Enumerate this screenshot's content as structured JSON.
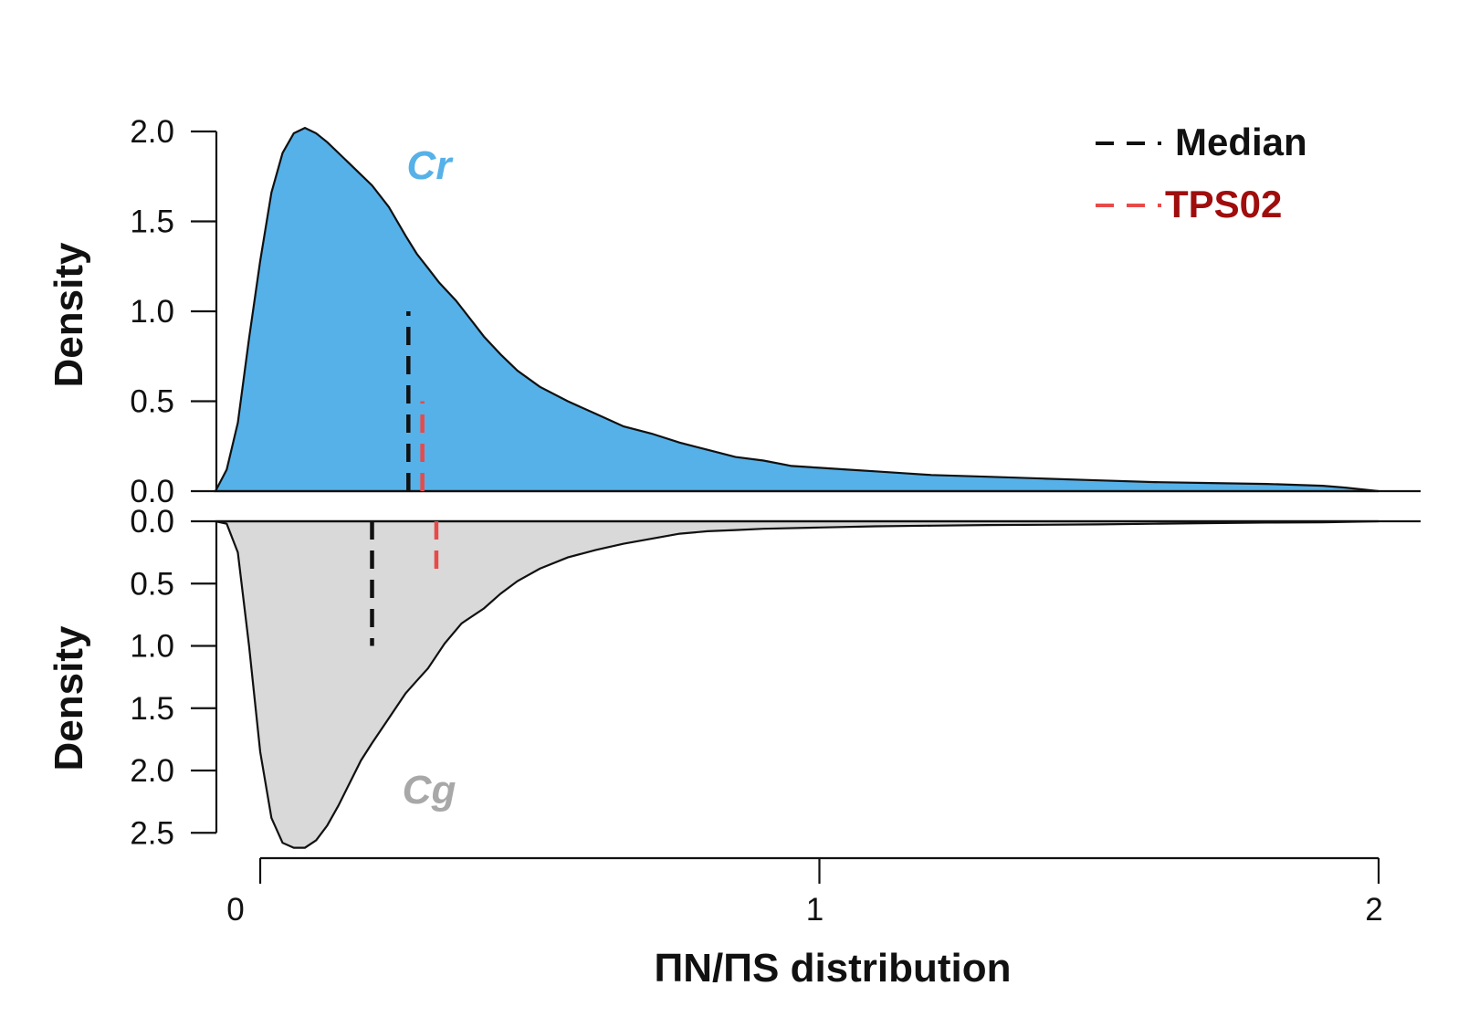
{
  "chart_data": [
    {
      "type": "area",
      "name": "Cr",
      "label": "Cr",
      "ylabel": "Density",
      "ylim": [
        0,
        2.0
      ],
      "y_ticks": [
        "0.0",
        "0.5",
        "1.0",
        "1.5",
        "2.0"
      ],
      "y_tick_values": [
        0,
        0.5,
        1.0,
        1.5,
        2.0
      ],
      "fill_color": "#56b1e8",
      "label_color": "#56b1e8",
      "x": [
        -0.08,
        -0.06,
        -0.04,
        -0.02,
        0.0,
        0.02,
        0.04,
        0.06,
        0.08,
        0.1,
        0.12,
        0.15,
        0.18,
        0.2,
        0.23,
        0.26,
        0.28,
        0.3,
        0.32,
        0.35,
        0.38,
        0.4,
        0.43,
        0.46,
        0.5,
        0.55,
        0.6,
        0.65,
        0.7,
        0.75,
        0.8,
        0.85,
        0.9,
        0.95,
        1.0,
        1.05,
        1.1,
        1.15,
        1.2,
        1.3,
        1.4,
        1.5,
        1.6,
        1.7,
        1.8,
        1.9,
        1.94,
        2.0
      ],
      "values": [
        0.0,
        0.12,
        0.38,
        0.85,
        1.28,
        1.66,
        1.88,
        1.99,
        2.02,
        1.99,
        1.94,
        1.85,
        1.76,
        1.7,
        1.58,
        1.42,
        1.32,
        1.24,
        1.16,
        1.06,
        0.94,
        0.86,
        0.76,
        0.67,
        0.58,
        0.5,
        0.43,
        0.36,
        0.32,
        0.27,
        0.23,
        0.19,
        0.17,
        0.14,
        0.13,
        0.12,
        0.11,
        0.1,
        0.09,
        0.08,
        0.07,
        0.06,
        0.05,
        0.045,
        0.04,
        0.03,
        0.02,
        0.0
      ],
      "median": 0.265,
      "median_line_top": 1.0,
      "tps02": 0.29,
      "tps02_line_top": 0.5
    },
    {
      "type": "area",
      "name": "Cg",
      "label": "Cg",
      "ylabel": "Density",
      "ylim": [
        0,
        2.5
      ],
      "y_ticks": [
        "0.0",
        "0.5",
        "1.0",
        "1.5",
        "2.0",
        "2.5"
      ],
      "y_tick_values": [
        0,
        0.5,
        1.0,
        1.5,
        2.0,
        2.5
      ],
      "y_inverted": true,
      "fill_color": "#d9d9d9",
      "label_color": "#a8a8a8",
      "x": [
        -0.08,
        -0.06,
        -0.04,
        -0.02,
        0.0,
        0.02,
        0.04,
        0.06,
        0.08,
        0.1,
        0.12,
        0.14,
        0.16,
        0.18,
        0.2,
        0.23,
        0.26,
        0.28,
        0.3,
        0.33,
        0.36,
        0.4,
        0.43,
        0.46,
        0.5,
        0.55,
        0.6,
        0.65,
        0.7,
        0.75,
        0.8,
        0.85,
        0.9,
        1.0,
        1.1,
        1.2,
        1.3,
        1.4,
        1.5,
        1.6,
        1.7,
        1.8,
        1.9,
        2.0
      ],
      "values": [
        0.0,
        0.02,
        0.25,
        1.0,
        1.85,
        2.38,
        2.58,
        2.62,
        2.62,
        2.56,
        2.44,
        2.28,
        2.1,
        1.92,
        1.78,
        1.58,
        1.38,
        1.28,
        1.18,
        0.98,
        0.82,
        0.7,
        0.58,
        0.48,
        0.38,
        0.29,
        0.23,
        0.18,
        0.14,
        0.1,
        0.08,
        0.07,
        0.06,
        0.05,
        0.04,
        0.035,
        0.03,
        0.028,
        0.025,
        0.02,
        0.015,
        0.01,
        0.008,
        0.0
      ],
      "median": 0.2,
      "median_line_bottom": 1.0,
      "tps02": 0.315,
      "tps02_line_bottom": 0.45
    }
  ],
  "x_axis": {
    "label": "ΠN/ΠS distribution",
    "xlim": [
      -0.08,
      2.08
    ],
    "ticks": [
      "0",
      "1",
      "2"
    ],
    "tick_values": [
      0,
      1,
      2
    ]
  },
  "legend": {
    "placement": "top-right",
    "items": [
      {
        "label": "Median",
        "line_color": "#111111",
        "text_color": "#111111"
      },
      {
        "label": "TPS02",
        "line_color": "#e84a4a",
        "text_color": "#a00d0d"
      }
    ]
  },
  "colors": {
    "outline": "#111111",
    "median": "#111111",
    "tps02": "#e84a4a"
  }
}
